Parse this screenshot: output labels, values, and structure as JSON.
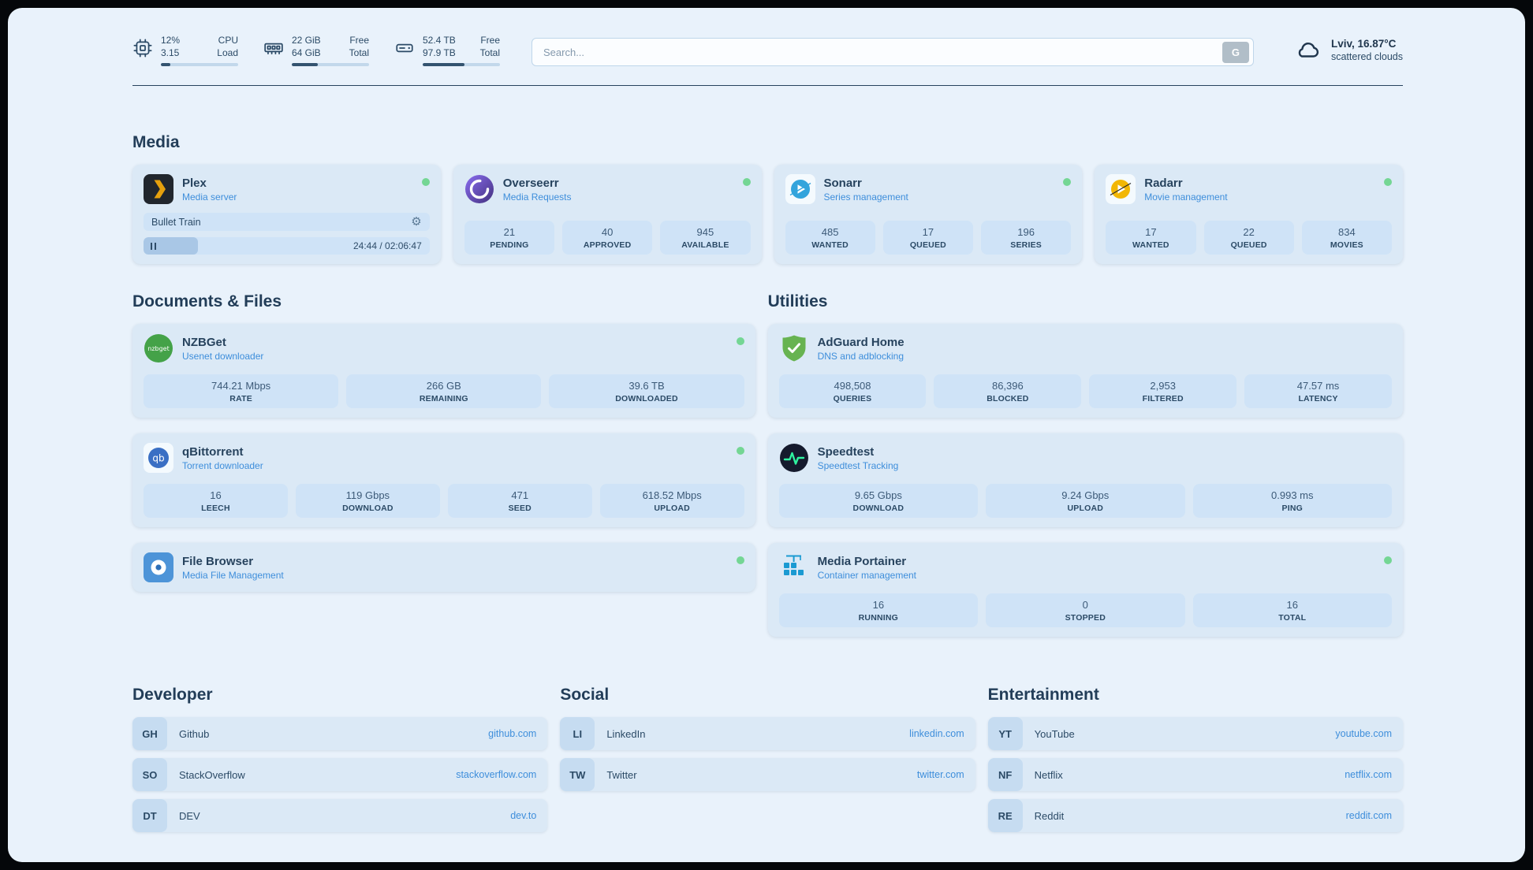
{
  "colors": {
    "accent": "#3e8edb",
    "text": "#2b4a66",
    "green": "#74d694",
    "page_bg": "#e9f2fb",
    "card_bg": "#dbe9f6",
    "stat_bg": "#cfe3f7"
  },
  "topbar": {
    "cpu": {
      "value_top": "12%",
      "value_bottom": "3.15",
      "label_top": "CPU",
      "label_bottom": "Load",
      "fill_percent": 12
    },
    "memory": {
      "value_top": "22 GiB",
      "value_bottom": "64 GiB",
      "label_top": "Free",
      "label_bottom": "Total",
      "fill_percent": 34
    },
    "disk": {
      "value_top": "52.4 TB",
      "value_bottom": "97.9 TB",
      "label_top": "Free",
      "label_bottom": "Total",
      "fill_percent": 54
    },
    "search": {
      "placeholder": "Search...",
      "button_label": "G"
    },
    "weather": {
      "location": "Lviv, 16.87°C",
      "condition": "scattered clouds"
    }
  },
  "sections": {
    "media": {
      "title": "Media",
      "plex": {
        "name": "Plex",
        "subtitle": "Media server",
        "status": "online",
        "icon": "plex-icon",
        "now_playing": "Bullet Train",
        "elapsed_total": "24:44 / 02:06:47",
        "progress_percent": 19
      },
      "overseerr": {
        "name": "Overseerr",
        "subtitle": "Media Requests",
        "status": "online",
        "icon": "overseerr-icon",
        "stats": [
          {
            "value": "21",
            "label": "PENDING"
          },
          {
            "value": "40",
            "label": "APPROVED"
          },
          {
            "value": "945",
            "label": "AVAILABLE"
          }
        ]
      },
      "sonarr": {
        "name": "Sonarr",
        "subtitle": "Series management",
        "status": "online",
        "icon": "sonarr-icon",
        "stats": [
          {
            "value": "485",
            "label": "WANTED"
          },
          {
            "value": "17",
            "label": "QUEUED"
          },
          {
            "value": "196",
            "label": "SERIES"
          }
        ]
      },
      "radarr": {
        "name": "Radarr",
        "subtitle": "Movie management",
        "status": "online",
        "icon": "radarr-icon",
        "stats": [
          {
            "value": "17",
            "label": "WANTED"
          },
          {
            "value": "22",
            "label": "QUEUED"
          },
          {
            "value": "834",
            "label": "MOVIES"
          }
        ]
      }
    },
    "documents": {
      "title": "Documents & Files",
      "nzbget": {
        "name": "NZBGet",
        "subtitle": "Usenet downloader",
        "status": "online",
        "icon": "nzbget-icon",
        "stats": [
          {
            "value": "744.21 Mbps",
            "label": "RATE"
          },
          {
            "value": "266 GB",
            "label": "REMAINING"
          },
          {
            "value": "39.6 TB",
            "label": "DOWNLOADED"
          }
        ]
      },
      "qbittorrent": {
        "name": "qBittorrent",
        "subtitle": "Torrent downloader",
        "status": "online",
        "icon": "qbittorrent-icon",
        "stats": [
          {
            "value": "16",
            "label": "LEECH"
          },
          {
            "value": "119 Gbps",
            "label": "DOWNLOAD"
          },
          {
            "value": "471",
            "label": "SEED"
          },
          {
            "value": "618.52 Mbps",
            "label": "UPLOAD"
          }
        ]
      },
      "filebrowser": {
        "name": "File Browser",
        "subtitle": "Media File Management",
        "status": "online",
        "icon": "filebrowser-icon"
      }
    },
    "utilities": {
      "title": "Utilities",
      "adguard": {
        "name": "AdGuard Home",
        "subtitle": "DNS and adblocking",
        "icon": "adguard-icon",
        "stats": [
          {
            "value": "498,508",
            "label": "QUERIES"
          },
          {
            "value": "86,396",
            "label": "BLOCKED"
          },
          {
            "value": "2,953",
            "label": "FILTERED"
          },
          {
            "value": "47.57 ms",
            "label": "LATENCY"
          }
        ]
      },
      "speedtest": {
        "name": "Speedtest",
        "subtitle": "Speedtest Tracking",
        "icon": "speedtest-icon",
        "stats": [
          {
            "value": "9.65 Gbps",
            "label": "DOWNLOAD"
          },
          {
            "value": "9.24 Gbps",
            "label": "UPLOAD"
          },
          {
            "value": "0.993 ms",
            "label": "PING"
          }
        ]
      },
      "portainer": {
        "name": "Media Portainer",
        "subtitle": "Container management",
        "status": "online",
        "icon": "portainer-icon",
        "stats": [
          {
            "value": "16",
            "label": "RUNNING"
          },
          {
            "value": "0",
            "label": "STOPPED"
          },
          {
            "value": "16",
            "label": "TOTAL"
          }
        ]
      }
    }
  },
  "bookmarks": {
    "developer": {
      "title": "Developer",
      "items": [
        {
          "abbr": "GH",
          "name": "Github",
          "domain": "github.com"
        },
        {
          "abbr": "SO",
          "name": "StackOverflow",
          "domain": "stackoverflow.com"
        },
        {
          "abbr": "DT",
          "name": "DEV",
          "domain": "dev.to"
        }
      ]
    },
    "social": {
      "title": "Social",
      "items": [
        {
          "abbr": "LI",
          "name": "LinkedIn",
          "domain": "linkedin.com"
        },
        {
          "abbr": "TW",
          "name": "Twitter",
          "domain": "twitter.com"
        }
      ]
    },
    "entertainment": {
      "title": "Entertainment",
      "items": [
        {
          "abbr": "YT",
          "name": "YouTube",
          "domain": "youtube.com"
        },
        {
          "abbr": "NF",
          "name": "Netflix",
          "domain": "netflix.com"
        },
        {
          "abbr": "RE",
          "name": "Reddit",
          "domain": "reddit.com"
        }
      ]
    }
  }
}
